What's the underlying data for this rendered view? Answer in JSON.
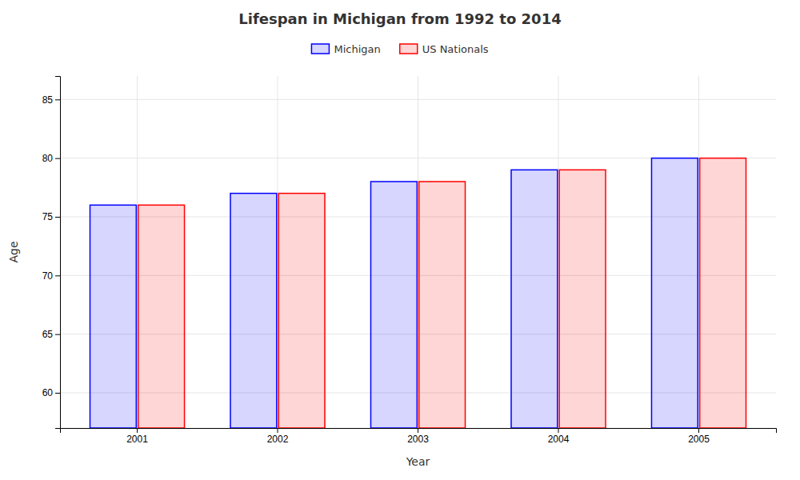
{
  "chart_data": {
    "type": "bar",
    "title": "Lifespan in Michigan from 1992 to 2014",
    "x_label": "Year",
    "y_label": "Age",
    "categories": [
      "2001",
      "2002",
      "2003",
      "2004",
      "2005"
    ],
    "series": [
      {
        "name": "Michigan",
        "color": "#0000ff",
        "values": [
          76,
          77,
          78,
          79,
          80
        ]
      },
      {
        "name": "US Nationals",
        "color": "#ff0000",
        "values": [
          76,
          77,
          78,
          79,
          80
        ]
      }
    ],
    "ylim": [
      57,
      87
    ],
    "yticks": [
      60,
      65,
      70,
      75,
      80,
      85
    ],
    "grid": true,
    "legend": "top"
  }
}
